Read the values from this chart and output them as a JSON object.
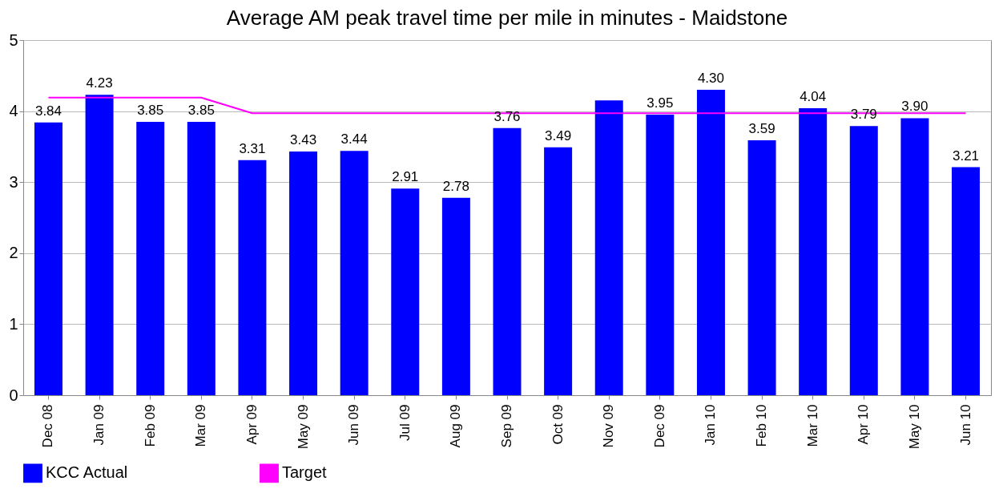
{
  "chart_data": {
    "type": "bar",
    "title": "Average AM peak travel time per mile in minutes - Maidstone",
    "categories": [
      "Dec 08",
      "Jan 09",
      "Feb 09",
      "Mar 09",
      "Apr 09",
      "May 09",
      "Jun 09",
      "Jul 09",
      "Aug 09",
      "Sep 09",
      "Oct 09",
      "Nov 09",
      "Dec 09",
      "Jan 10",
      "Feb 10",
      "Mar 10",
      "Apr 10",
      "May 10",
      "Jun 10"
    ],
    "series": [
      {
        "name": "KCC Actual",
        "color": "#0000ff",
        "values": [
          3.84,
          4.23,
          3.85,
          3.85,
          3.31,
          3.43,
          3.44,
          2.91,
          2.78,
          3.76,
          3.49,
          4.15,
          3.95,
          4.3,
          3.59,
          4.04,
          3.79,
          3.9,
          3.21
        ],
        "value_labels": [
          "3.84",
          "4.23",
          "3.85",
          "3.85",
          "3.31",
          "3.43",
          "3.44",
          "2.91",
          "2.78",
          "3.76",
          "3.49",
          null,
          "3.95",
          "4.30",
          "3.59",
          "4.04",
          "3.79",
          "3.90",
          "3.21"
        ]
      },
      {
        "name": "Target",
        "type": "line",
        "color": "#ff00ff",
        "values": [
          4.19,
          4.19,
          4.19,
          4.19,
          3.97,
          3.97,
          3.97,
          3.97,
          3.97,
          3.97,
          3.97,
          3.97,
          3.97,
          3.97,
          3.97,
          3.97,
          3.97,
          3.97,
          3.97
        ]
      }
    ],
    "ylim": [
      0,
      5
    ],
    "yticks": [
      0,
      1,
      2,
      3,
      4,
      5
    ],
    "grid": "y",
    "legend": "bottom"
  }
}
